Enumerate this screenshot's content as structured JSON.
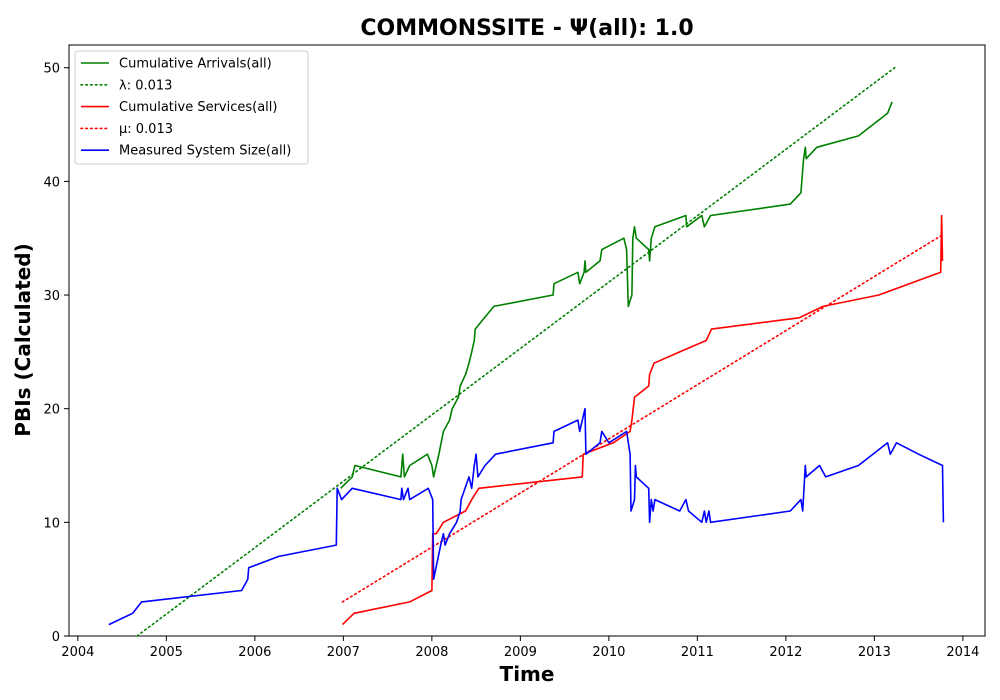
{
  "chart_data": {
    "type": "line",
    "title": "COMMONSSITE -  Ψ(all): 1.0",
    "xlabel": "Time",
    "ylabel": "PBIs (Calculated)",
    "xlim": [
      2003.9,
      2014.25
    ],
    "ylim": [
      0,
      52
    ],
    "xticks": [
      "2004",
      "2005",
      "2006",
      "2007",
      "2008",
      "2009",
      "2010",
      "2011",
      "2012",
      "2013",
      "2014"
    ],
    "yticks": [
      "0",
      "10",
      "20",
      "30",
      "40",
      "50"
    ],
    "grid": false,
    "legend_position": "top-left",
    "series": [
      {
        "name": "Cumulative Arrivals(all)",
        "color": "#008000",
        "style": "solid",
        "points": [
          [
            2006.97,
            13
          ],
          [
            2007.1,
            14
          ],
          [
            2007.13,
            15
          ],
          [
            2007.65,
            14
          ],
          [
            2007.67,
            16
          ],
          [
            2007.69,
            14
          ],
          [
            2007.75,
            15
          ],
          [
            2007.95,
            16
          ],
          [
            2008.0,
            15
          ],
          [
            2008.02,
            14
          ],
          [
            2008.08,
            16
          ],
          [
            2008.13,
            18
          ],
          [
            2008.2,
            19
          ],
          [
            2008.23,
            20
          ],
          [
            2008.3,
            21
          ],
          [
            2008.32,
            22
          ],
          [
            2008.38,
            23
          ],
          [
            2008.42,
            24
          ],
          [
            2008.45,
            25
          ],
          [
            2008.48,
            26
          ],
          [
            2008.49,
            27
          ],
          [
            2008.7,
            29
          ],
          [
            2009.37,
            30
          ],
          [
            2009.38,
            31
          ],
          [
            2009.65,
            32
          ],
          [
            2009.67,
            31
          ],
          [
            2009.72,
            32
          ],
          [
            2009.73,
            33
          ],
          [
            2009.74,
            32
          ],
          [
            2009.9,
            33
          ],
          [
            2009.92,
            34
          ],
          [
            2010.17,
            35
          ],
          [
            2010.2,
            34
          ],
          [
            2010.22,
            29
          ],
          [
            2010.26,
            30
          ],
          [
            2010.27,
            35
          ],
          [
            2010.29,
            36
          ],
          [
            2010.31,
            35
          ],
          [
            2010.45,
            34
          ],
          [
            2010.46,
            33
          ],
          [
            2010.48,
            35
          ],
          [
            2010.52,
            36
          ],
          [
            2010.87,
            37
          ],
          [
            2010.88,
            36
          ],
          [
            2011.05,
            37
          ],
          [
            2011.08,
            36
          ],
          [
            2011.15,
            37
          ],
          [
            2012.05,
            38
          ],
          [
            2012.17,
            39
          ],
          [
            2012.2,
            42
          ],
          [
            2012.22,
            43
          ],
          [
            2012.23,
            42
          ],
          [
            2012.35,
            43
          ],
          [
            2012.82,
            44
          ],
          [
            2013.15,
            46
          ],
          [
            2013.2,
            47
          ]
        ]
      },
      {
        "name": "λ: 0.013",
        "color": "#008000",
        "style": "dotted",
        "points": [
          [
            2004.67,
            0
          ],
          [
            2013.23,
            50
          ]
        ]
      },
      {
        "name": "Cumulative Services(all)",
        "color": "#ff0000",
        "style": "solid",
        "points": [
          [
            2006.99,
            1
          ],
          [
            2007.12,
            2
          ],
          [
            2007.75,
            3
          ],
          [
            2008.0,
            4
          ],
          [
            2008.01,
            9
          ],
          [
            2008.05,
            9
          ],
          [
            2008.13,
            10
          ],
          [
            2008.38,
            11
          ],
          [
            2008.45,
            12
          ],
          [
            2008.53,
            13
          ],
          [
            2009.7,
            14
          ],
          [
            2009.71,
            16
          ],
          [
            2010.05,
            17
          ],
          [
            2010.24,
            18
          ],
          [
            2010.26,
            19
          ],
          [
            2010.29,
            21
          ],
          [
            2010.45,
            22
          ],
          [
            2010.46,
            23
          ],
          [
            2010.51,
            24
          ],
          [
            2010.8,
            25
          ],
          [
            2011.1,
            26
          ],
          [
            2011.16,
            27
          ],
          [
            2012.15,
            28
          ],
          [
            2012.42,
            29
          ],
          [
            2013.05,
            30
          ],
          [
            2013.75,
            32
          ],
          [
            2013.76,
            37
          ],
          [
            2013.77,
            33
          ]
        ]
      },
      {
        "name": "μ: 0.013",
        "color": "#ff0000",
        "style": "dotted",
        "points": [
          [
            2006.99,
            3
          ],
          [
            2013.77,
            35.3
          ]
        ]
      },
      {
        "name": "Measured System Size(all)",
        "color": "#0000ff",
        "style": "solid",
        "points": [
          [
            2004.35,
            1
          ],
          [
            2004.62,
            2
          ],
          [
            2004.72,
            3
          ],
          [
            2005.85,
            4
          ],
          [
            2005.92,
            5
          ],
          [
            2005.93,
            6
          ],
          [
            2006.27,
            7
          ],
          [
            2006.92,
            8
          ],
          [
            2006.93,
            13
          ],
          [
            2006.98,
            12
          ],
          [
            2007.1,
            13
          ],
          [
            2007.65,
            12
          ],
          [
            2007.66,
            13
          ],
          [
            2007.68,
            12
          ],
          [
            2007.73,
            13
          ],
          [
            2007.75,
            12
          ],
          [
            2007.96,
            13
          ],
          [
            2008.01,
            12
          ],
          [
            2008.02,
            5
          ],
          [
            2008.1,
            8
          ],
          [
            2008.13,
            9
          ],
          [
            2008.15,
            8
          ],
          [
            2008.2,
            9
          ],
          [
            2008.28,
            10
          ],
          [
            2008.32,
            11
          ],
          [
            2008.33,
            12
          ],
          [
            2008.42,
            14
          ],
          [
            2008.45,
            13
          ],
          [
            2008.48,
            15
          ],
          [
            2008.5,
            16
          ],
          [
            2008.52,
            14
          ],
          [
            2008.6,
            15
          ],
          [
            2008.72,
            16
          ],
          [
            2009.37,
            17
          ],
          [
            2009.38,
            18
          ],
          [
            2009.65,
            19
          ],
          [
            2009.67,
            18
          ],
          [
            2009.73,
            20
          ],
          [
            2009.74,
            16
          ],
          [
            2009.9,
            17
          ],
          [
            2009.92,
            18
          ],
          [
            2010.0,
            17
          ],
          [
            2010.2,
            18
          ],
          [
            2010.24,
            16
          ],
          [
            2010.25,
            11
          ],
          [
            2010.29,
            12
          ],
          [
            2010.3,
            15
          ],
          [
            2010.31,
            14
          ],
          [
            2010.45,
            13
          ],
          [
            2010.46,
            10
          ],
          [
            2010.48,
            12
          ],
          [
            2010.5,
            11
          ],
          [
            2010.52,
            12
          ],
          [
            2010.8,
            11
          ],
          [
            2010.87,
            12
          ],
          [
            2010.9,
            11
          ],
          [
            2011.05,
            10
          ],
          [
            2011.08,
            11
          ],
          [
            2011.1,
            10
          ],
          [
            2011.13,
            11
          ],
          [
            2011.15,
            10
          ],
          [
            2012.05,
            11
          ],
          [
            2012.17,
            12
          ],
          [
            2012.19,
            11
          ],
          [
            2012.22,
            15
          ],
          [
            2012.23,
            14
          ],
          [
            2012.38,
            15
          ],
          [
            2012.45,
            14
          ],
          [
            2012.82,
            15
          ],
          [
            2013.15,
            17
          ],
          [
            2013.18,
            16
          ],
          [
            2013.25,
            17
          ],
          [
            2013.5,
            16
          ],
          [
            2013.77,
            15
          ],
          [
            2013.78,
            10
          ]
        ]
      }
    ]
  }
}
